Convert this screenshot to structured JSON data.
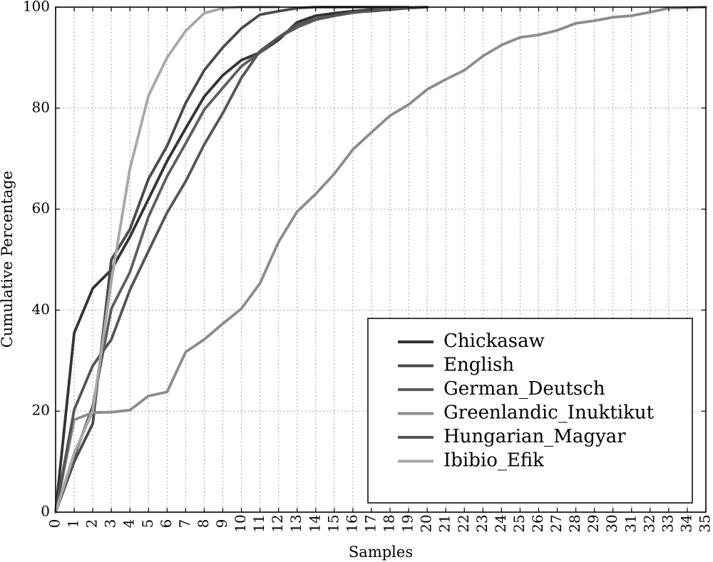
{
  "chart_data": {
    "type": "line",
    "title": "",
    "xlabel": "Samples",
    "ylabel": "Cumulative Percentage",
    "xlim": [
      0,
      35
    ],
    "ylim": [
      0,
      100
    ],
    "xticks": [
      0,
      1,
      2,
      3,
      4,
      5,
      6,
      7,
      8,
      9,
      10,
      11,
      12,
      13,
      14,
      15,
      16,
      17,
      18,
      19,
      20,
      21,
      22,
      23,
      24,
      25,
      26,
      27,
      28,
      29,
      30,
      31,
      32,
      33,
      34,
      35
    ],
    "yticks": [
      0,
      20,
      40,
      60,
      80,
      100
    ],
    "grid": true,
    "legend_position": "lower-right",
    "series": [
      {
        "name": "Chickasaw",
        "color": "#333333",
        "x": [
          0,
          1,
          2,
          3,
          4,
          5,
          6,
          7,
          8,
          9,
          10,
          11,
          12,
          13,
          14,
          15,
          16,
          17,
          18,
          19,
          20
        ],
        "y": [
          0,
          35.5,
          44.3,
          48,
          54.5,
          62,
          69.5,
          76,
          82.3,
          86.5,
          89.5,
          91,
          93.5,
          97,
          98.3,
          98.8,
          99.2,
          99.5,
          99.7,
          99.9,
          100
        ]
      },
      {
        "name": "English",
        "color": "#4a4a4a",
        "x": [
          0,
          1,
          2,
          3,
          4,
          5,
          6,
          7,
          8,
          9,
          10,
          11,
          12,
          13,
          14,
          15,
          16,
          17,
          18,
          19
        ],
        "y": [
          0,
          10,
          17.5,
          50,
          56,
          66,
          72.5,
          81,
          87.5,
          92,
          95.8,
          98.5,
          99.2,
          99.8,
          100,
          100,
          100,
          100,
          100,
          100
        ]
      },
      {
        "name": "German_Deutsch",
        "color": "#5e5e5e",
        "x": [
          0,
          1,
          2,
          3,
          4,
          5,
          6,
          7,
          8,
          9,
          10,
          11,
          12,
          13,
          14,
          15,
          16,
          17,
          18,
          19,
          20
        ],
        "y": [
          0,
          11,
          21,
          40.3,
          47.5,
          58.5,
          66.5,
          73,
          79.7,
          84,
          88.3,
          91,
          94,
          96,
          97.5,
          98.3,
          98.9,
          99.3,
          99.6,
          99.8,
          100
        ]
      },
      {
        "name": "Greenlandic_Inuktikut",
        "color": "#8c8c8c",
        "x": [
          0,
          1,
          2,
          3,
          4,
          5,
          6,
          7,
          8,
          9,
          10,
          11,
          12,
          13,
          14,
          15,
          16,
          17,
          18,
          19,
          20,
          21,
          22,
          23,
          24,
          25,
          26,
          27,
          28,
          29,
          30,
          31,
          32,
          33,
          34,
          35
        ],
        "y": [
          0,
          18.3,
          19.7,
          19.8,
          20.2,
          23,
          23.8,
          31.7,
          34.2,
          37.3,
          40.3,
          45.3,
          53.5,
          59.5,
          63,
          67,
          71.8,
          75.2,
          78.5,
          80.7,
          83.7,
          85.7,
          87.5,
          90.3,
          92.5,
          94,
          94.5,
          95.4,
          96.8,
          97.3,
          98,
          98.3,
          99,
          99.8,
          99.9,
          100
        ]
      },
      {
        "name": "Hungarian_Magyar",
        "color": "#555555",
        "x": [
          0,
          1,
          2,
          3,
          4,
          5,
          6,
          7,
          8,
          9,
          10,
          11,
          12,
          13,
          14,
          15,
          16,
          17,
          18,
          19,
          20
        ],
        "y": [
          0,
          20.3,
          29,
          34.2,
          44,
          51.7,
          59.3,
          65.5,
          72.8,
          79,
          86,
          91.3,
          94,
          96.5,
          97.7,
          98.3,
          99,
          99.2,
          99.5,
          99.8,
          100
        ]
      },
      {
        "name": "Ibibio_Efik",
        "color": "#a8a8a8",
        "x": [
          0,
          1,
          2,
          3,
          4,
          5,
          6,
          7,
          8,
          9,
          10,
          11,
          12
        ],
        "y": [
          0,
          11.7,
          20,
          45.8,
          68,
          82.5,
          90,
          95.3,
          98.8,
          99.8,
          100,
          100,
          100
        ]
      }
    ]
  }
}
